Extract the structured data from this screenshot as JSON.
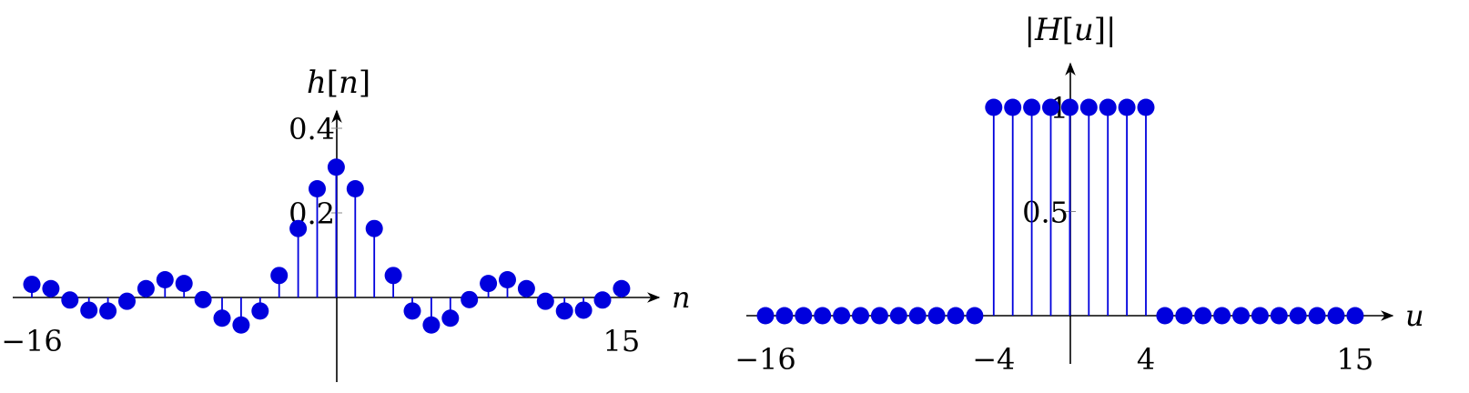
{
  "chart_data": [
    {
      "type": "stem",
      "title": "h[n]",
      "xlabel": "n",
      "ylabel": "h[n]",
      "xlim": [
        -16,
        15
      ],
      "yticks": [
        "0.2",
        "0.4"
      ],
      "ytick_values": [
        0.2,
        0.4
      ],
      "xtick_labels": [
        "−16",
        "15"
      ],
      "xtick_values": [
        -16,
        15
      ],
      "color": "#0000dd",
      "x": [
        -16,
        -15,
        -14,
        -13,
        -12,
        -11,
        -10,
        -9,
        -8,
        -7,
        -6,
        -5,
        -4,
        -3,
        -2,
        -1,
        0,
        1,
        2,
        3,
        4,
        5,
        6,
        7,
        8,
        9,
        10,
        11,
        12,
        13,
        14,
        15
      ],
      "y": [
        0.031,
        0.021,
        -0.006,
        -0.03,
        -0.032,
        -0.009,
        0.021,
        0.042,
        0.033,
        -0.005,
        -0.049,
        -0.065,
        -0.032,
        0.052,
        0.163,
        0.257,
        0.308,
        0.257,
        0.163,
        0.052,
        -0.032,
        -0.065,
        -0.049,
        -0.005,
        0.033,
        0.042,
        0.021,
        -0.009,
        -0.032,
        -0.03,
        -0.006,
        0.021
      ]
    },
    {
      "type": "stem",
      "title": "|H[u]|",
      "xlabel": "u",
      "ylabel": "|H[u]|",
      "xlim": [
        -16,
        15
      ],
      "yticks": [
        "0.5",
        "1"
      ],
      "ytick_values": [
        0.5,
        1
      ],
      "xtick_labels": [
        "−16",
        "−4",
        "4",
        "15"
      ],
      "xtick_values": [
        -16,
        -4,
        4,
        15
      ],
      "color": "#0000dd",
      "x": [
        -16,
        -15,
        -14,
        -13,
        -12,
        -11,
        -10,
        -9,
        -8,
        -7,
        -6,
        -5,
        -4,
        -3,
        -2,
        -1,
        0,
        1,
        2,
        3,
        4,
        5,
        6,
        7,
        8,
        9,
        10,
        11,
        12,
        13,
        14,
        15
      ],
      "y": [
        0,
        0,
        0,
        0,
        0,
        0,
        0,
        0,
        0,
        0,
        0,
        0,
        1,
        1,
        1,
        1,
        1,
        1,
        1,
        1,
        1,
        0,
        0,
        0,
        0,
        0,
        0,
        0,
        0,
        0,
        0,
        0
      ]
    }
  ]
}
